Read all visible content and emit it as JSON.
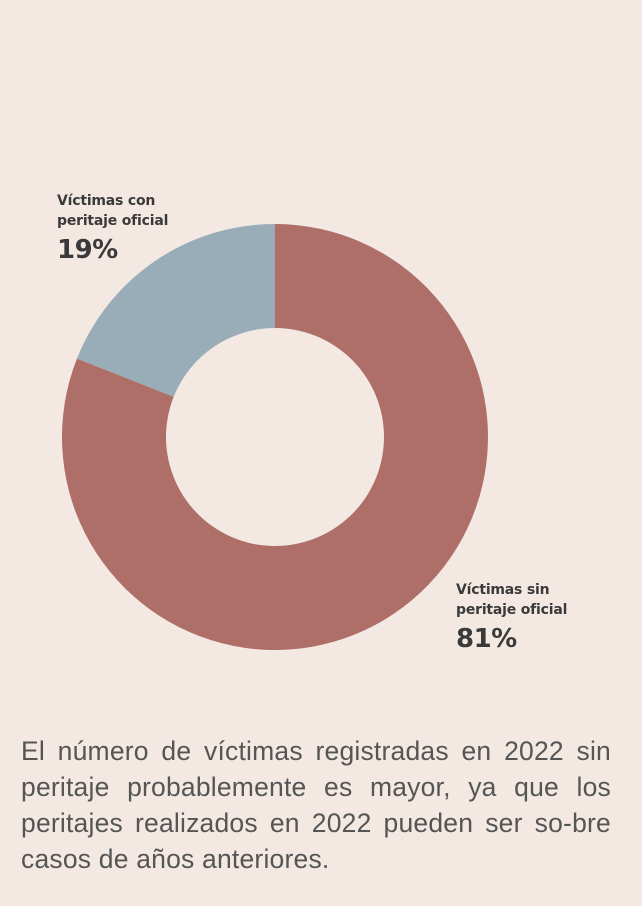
{
  "chart_data": {
    "type": "pie",
    "donut": true,
    "categories": [
      "Víctimas con\nperitaje oficial",
      "Víctimas sin\nperitaje oficial"
    ],
    "values": [
      19,
      81
    ],
    "value_labels": [
      "19%",
      "81%"
    ],
    "colors": [
      "#99adb8",
      "#af6f69"
    ],
    "start": "12 o'clock",
    "direction": "counterclockwise for first slice"
  },
  "labels": {
    "con_line1": "Víctimas con",
    "con_line2": "peritaje oficial",
    "con_pct": "19%",
    "sin_line1": "Víctimas sin",
    "sin_line2": "peritaje oficial",
    "sin_pct": "81%"
  },
  "caption": "El número de víctimas registradas en 2022 sin peritaje probablemente es mayor, ya que los peritajes realizados en 2022 pueden ser so-bre casos de años anteriores.",
  "colors": {
    "background": "#f3e8e2",
    "slice_con": "#99adb8",
    "slice_sin": "#af6f69",
    "text": "#3f3f3f"
  }
}
